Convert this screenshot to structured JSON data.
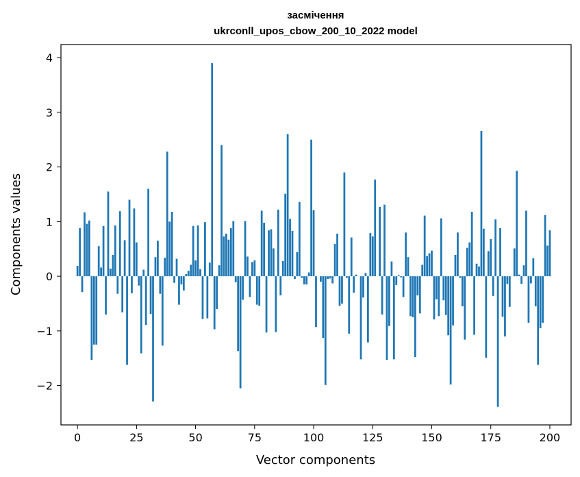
{
  "chart_data": {
    "type": "bar",
    "title": "засмічення",
    "subtitle": "ukrconll_upos_cbow_200_10_2022 model",
    "xlabel": "Vector components",
    "ylabel": "Components values",
    "xlim": [
      -7,
      209
    ],
    "ylim": [
      -2.72,
      4.24
    ],
    "x_ticks": [
      0,
      25,
      50,
      75,
      100,
      125,
      150,
      175,
      200
    ],
    "y_ticks": [
      -2,
      -1,
      0,
      1,
      2,
      3,
      4
    ],
    "y_tick_labels": [
      "−2",
      "−1",
      "0",
      "1",
      "2",
      "3",
      "4"
    ],
    "grid": false,
    "bar_color": "#1f77b4",
    "series": [
      {
        "values": [
          0.19,
          0.88,
          -0.29,
          1.17,
          0.96,
          1.02,
          -1.53,
          -1.25,
          -1.25,
          0.55,
          0.16,
          0.92,
          -0.7,
          1.55,
          0.14,
          0.39,
          0.93,
          -0.32,
          1.19,
          -0.66,
          0.66,
          -1.62,
          1.4,
          -0.31,
          1.24,
          0.62,
          -0.17,
          -1.41,
          0.12,
          -0.89,
          1.6,
          -0.69,
          -2.29,
          0.35,
          0.65,
          -0.32,
          -1.27,
          0.34,
          2.28,
          1.0,
          1.18,
          -0.12,
          0.32,
          -0.52,
          -0.15,
          -0.26,
          0.04,
          0.1,
          0.21,
          0.92,
          0.29,
          0.93,
          0.13,
          -0.78,
          0.99,
          -0.77,
          0.25,
          3.9,
          -0.97,
          -0.6,
          0.2,
          2.4,
          0.73,
          0.78,
          0.67,
          0.88,
          1.01,
          -0.11,
          -1.37,
          -2.05,
          -0.43,
          1.01,
          0.36,
          -0.38,
          0.26,
          0.29,
          -0.52,
          -0.54,
          1.2,
          0.98,
          -1.03,
          0.84,
          0.86,
          0.51,
          -1.02,
          1.22,
          -0.35,
          0.28,
          1.51,
          2.6,
          1.05,
          0.83,
          -0.05,
          0.44,
          1.36,
          -0.03,
          -0.15,
          -0.15,
          0.07,
          2.5,
          1.21,
          -0.93,
          0.0,
          -0.1,
          -1.13,
          -1.99,
          -0.05,
          -0.04,
          -0.13,
          0.59,
          0.78,
          -0.54,
          -0.5,
          1.9,
          -0.03,
          -1.05,
          0.71,
          -0.3,
          0.03,
          0.0,
          -1.52,
          -0.39,
          0.06,
          -1.21,
          0.79,
          0.73,
          1.77,
          0.0,
          1.27,
          -0.7,
          1.31,
          -1.53,
          -0.91,
          0.27,
          -1.52,
          -0.16,
          0.02,
          -0.02,
          -0.38,
          0.8,
          0.35,
          -0.73,
          -0.75,
          -1.48,
          -0.35,
          -0.68,
          0.21,
          1.11,
          0.37,
          0.42,
          0.47,
          -0.79,
          -0.42,
          -0.73,
          1.06,
          -0.44,
          -0.71,
          -1.08,
          -1.98,
          -0.9,
          0.39,
          0.8,
          -0.03,
          -0.55,
          -1.16,
          0.52,
          0.62,
          1.18,
          -1.07,
          0.23,
          0.18,
          2.66,
          0.87,
          -1.49,
          0.46,
          0.68,
          -0.36,
          1.04,
          -2.39,
          0.88,
          -0.74,
          -1.1,
          -0.14,
          -0.56,
          0.0,
          0.51,
          1.93,
          0.03,
          -0.14,
          0.2,
          1.2,
          -0.85,
          -0.13,
          0.33,
          -0.55,
          -1.62,
          -0.95,
          -0.85,
          1.12,
          0.56,
          0.84
        ]
      }
    ]
  }
}
